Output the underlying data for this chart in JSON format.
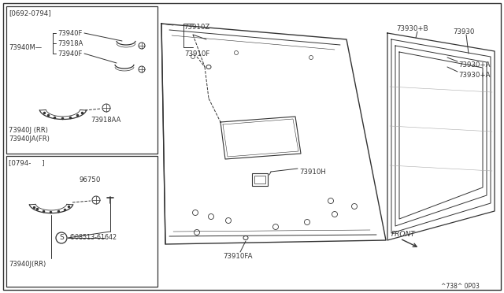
{
  "bg_color": "#ffffff",
  "line_color": "#333333",
  "text_color": "#333333",
  "box1_label": "[0692-0794]",
  "box2_label": "[0794-     ]",
  "p_73940M": "73940M",
  "p_73940F": "73940F",
  "p_73918A": "73918A",
  "p_73918AA": "73918AA",
  "p_73940J_RR": "73940J (RR)",
  "p_73940JA_FR": "73940JA(FR)",
  "p_96750": "96750",
  "p_08513": "©08513-61642",
  "p_73940J_RR2": "73940J(RR)",
  "p_73910Z": "73910Z",
  "p_73910F": "73910F",
  "p_73910H": "73910H",
  "p_73910FA": "73910FA",
  "p_73930_B": "73930+B",
  "p_73930_A1": "73930+A",
  "p_73930_A2": "73930+A",
  "p_73930": "73930",
  "p_FRONT": "FRONT",
  "p_diag": "^738^ 0P03"
}
